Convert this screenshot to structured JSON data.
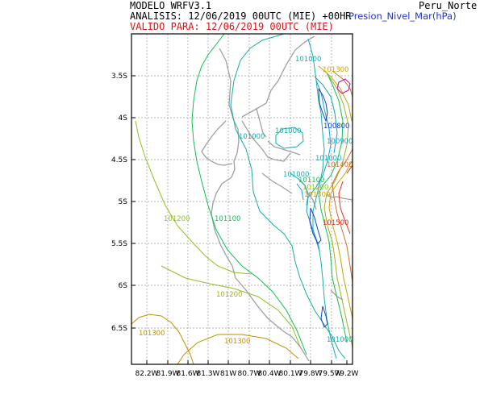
{
  "header": {
    "model": "MODELO WRFV3.1",
    "region": "Peru_Norte",
    "analysis": "ANALISIS: 12/06/2019 00UTC (MIE) +00HR",
    "variable": "Presion_Nivel_Mar(hPa)",
    "valid": "VALIDO PARA: 12/06/2019 00UTC (MIE)"
  },
  "colors": {
    "text": "#000000",
    "variable": "#2233cc",
    "valid": "#e01010",
    "coast": "#a0a0a0",
    "grid": "#9a9a9a"
  },
  "axes": {
    "y_ticks": [
      "3.5S",
      "4S",
      "4.5S",
      "5S",
      "5.5S",
      "6S",
      "6.5S"
    ],
    "x_ticks": [
      "82.2W",
      "81.9W",
      "81.6W",
      "81.3W",
      "81W",
      "80.7W",
      "80.4W",
      "80.1W",
      "79.8W",
      "79.5W",
      "79.2W"
    ]
  },
  "contour_labels": [
    {
      "text": "101000",
      "color": "#10b0b0"
    },
    {
      "text": "101300",
      "color": "#d0a000"
    },
    {
      "text": "100800",
      "color": "#1040d0"
    },
    {
      "text": "100900",
      "color": "#10a0d0"
    },
    {
      "text": "101000",
      "color": "#10b0b0"
    },
    {
      "text": "101000",
      "color": "#10b0b0"
    },
    {
      "text": "101000",
      "color": "#10b0b0"
    },
    {
      "text": "101400",
      "color": "#d07030"
    },
    {
      "text": "101000",
      "color": "#10b0b0"
    },
    {
      "text": "101100",
      "color": "#10c050"
    },
    {
      "text": "101200",
      "color": "#90c020"
    },
    {
      "text": "101300",
      "color": "#d0a000"
    },
    {
      "text": "101200",
      "color": "#90c020"
    },
    {
      "text": "101100",
      "color": "#10c050"
    },
    {
      "text": "101500",
      "color": "#e03020"
    },
    {
      "text": "101200",
      "color": "#a0b020"
    },
    {
      "text": "101300",
      "color": "#c09000"
    },
    {
      "text": "101300",
      "color": "#c09000"
    },
    {
      "text": "101000",
      "color": "#10b0b0"
    }
  ]
}
